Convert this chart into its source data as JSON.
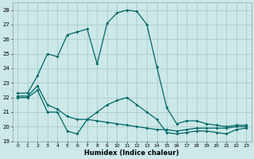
{
  "xlabel": "Humidex (Indice chaleur)",
  "ylabel": "",
  "background_color": "#cce8e8",
  "grid_color": "#aacccc",
  "line_color": "#006666",
  "x_ticks": [
    0,
    1,
    2,
    3,
    4,
    5,
    6,
    7,
    8,
    9,
    10,
    11,
    12,
    13,
    14,
    15,
    16,
    17,
    18,
    19,
    20,
    21,
    22,
    23
  ],
  "ylim": [
    19,
    28.5
  ],
  "yticks": [
    19,
    20,
    21,
    22,
    23,
    24,
    25,
    26,
    27,
    28
  ],
  "series_max": [
    22.3,
    22.3,
    23.5,
    25.0,
    24.8,
    26.3,
    26.5,
    26.7,
    24.3,
    27.1,
    27.8,
    28.0,
    27.9,
    27.0,
    24.1,
    21.3,
    20.2,
    20.4,
    20.4,
    20.2,
    20.1,
    20.0,
    20.1,
    20.1
  ],
  "series_min": [
    22.0,
    22.0,
    22.5,
    21.0,
    21.0,
    19.7,
    19.5,
    20.5,
    21.0,
    21.5,
    21.8,
    22.0,
    21.5,
    21.0,
    20.5,
    19.6,
    19.5,
    19.6,
    19.7,
    19.7,
    19.6,
    19.5,
    19.8,
    19.9
  ],
  "series_mean": [
    22.1,
    22.1,
    22.8,
    21.5,
    21.2,
    20.7,
    20.5,
    20.5,
    20.4,
    20.3,
    20.2,
    20.1,
    20.0,
    19.9,
    19.8,
    19.8,
    19.7,
    19.8,
    19.9,
    19.9,
    19.9,
    19.9,
    20.0,
    20.0
  ]
}
